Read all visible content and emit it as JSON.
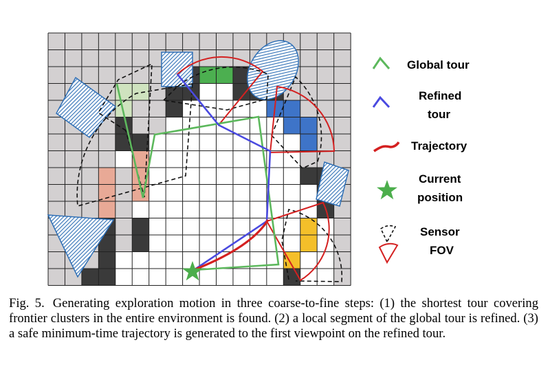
{
  "legend": {
    "global_tour": [
      "Global tour"
    ],
    "refined_tour": [
      "Refined",
      "tour"
    ],
    "trajectory": [
      "Trajectory"
    ],
    "current_position": [
      "Current",
      "position"
    ],
    "sensor_fov": [
      "Sensor",
      "FOV"
    ]
  },
  "caption": {
    "label": "Fig. 5.",
    "text": "Generating exploration motion in three coarse-to-fine steps: (1) the shortest tour covering frontier clusters in the entire environment is found. (2) a local segment of the global tour is refined. (3) a safe minimum-time trajectory is generated to the first viewpoint on the refined tour."
  },
  "colors": {
    "unknown": "#d3d0d1",
    "free": "#ffffff",
    "occupied": "#3a3a3a",
    "global_tour": "#5cb85c",
    "refined_tour": "#4a4ae0",
    "trajectory": "#d42020",
    "current_position": "#4cae4c",
    "cluster_green": "#4caf50",
    "cluster_light_green": "#cfe3bf",
    "cluster_blue": "#3e74c8",
    "cluster_salmon": "#e8a996",
    "cluster_yellow": "#f4bf2a",
    "obstacle_hatch": "#2f6fb5"
  }
}
